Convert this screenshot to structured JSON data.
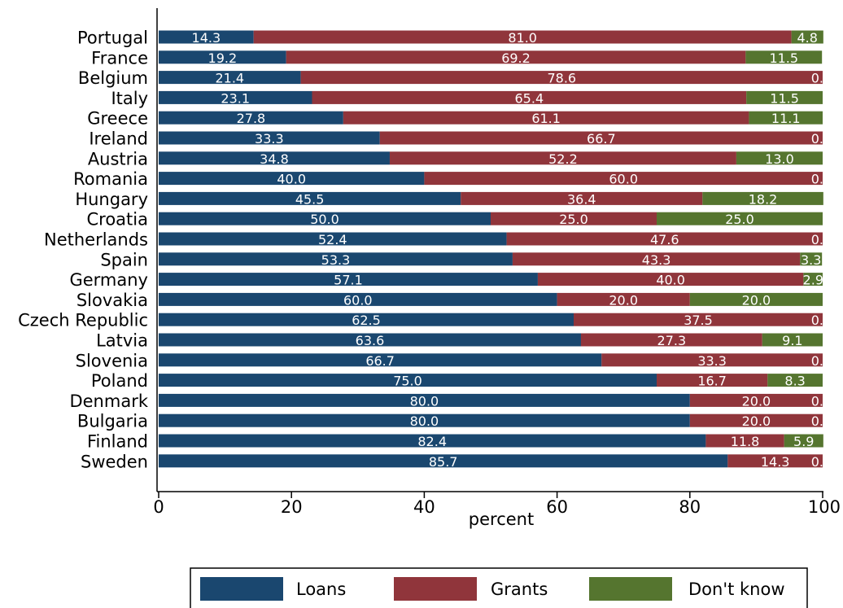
{
  "chart_data": {
    "type": "bar",
    "orientation": "horizontal",
    "stacked": true,
    "xlabel": "percent",
    "xlim": [
      0,
      100
    ],
    "xticks": [
      0,
      20,
      40,
      60,
      80,
      100
    ],
    "grid": false,
    "legend_position": "bottom",
    "categories": [
      "Portugal",
      "France",
      "Belgium",
      "Italy",
      "Greece",
      "Ireland",
      "Austria",
      "Romania",
      "Hungary",
      "Croatia",
      "Netherlands",
      "Spain",
      "Germany",
      "Slovakia",
      "Czech Republic",
      "Latvia",
      "Slovenia",
      "Poland",
      "Denmark",
      "Bulgaria",
      "Finland",
      "Sweden"
    ],
    "series": [
      {
        "name": "Loans",
        "color": "#1a476f",
        "values": [
          14.3,
          19.2,
          21.4,
          23.1,
          27.8,
          33.3,
          34.8,
          40.0,
          45.5,
          50.0,
          52.4,
          53.3,
          57.1,
          60.0,
          62.5,
          63.6,
          66.7,
          75.0,
          80.0,
          80.0,
          82.4,
          85.7
        ]
      },
      {
        "name": "Grants",
        "color": "#90353b",
        "values": [
          81.0,
          69.2,
          78.6,
          65.4,
          61.1,
          66.7,
          52.2,
          60.0,
          36.4,
          25.0,
          47.6,
          43.3,
          40.0,
          20.0,
          37.5,
          27.3,
          33.3,
          16.7,
          20.0,
          20.0,
          11.8,
          14.3
        ]
      },
      {
        "name": "Don't know",
        "color": "#55752f",
        "values": [
          4.8,
          11.5,
          0,
          11.5,
          11.1,
          0,
          13.0,
          0,
          18.2,
          25.0,
          0,
          3.3,
          2.9,
          20.0,
          0,
          9.1,
          0,
          8.3,
          0,
          0,
          5.9,
          0
        ]
      }
    ],
    "data_labels": [
      [
        "14.3",
        "81.0",
        "4.8"
      ],
      [
        "19.2",
        "69.2",
        "11.5"
      ],
      [
        "21.4",
        "78.6",
        "0."
      ],
      [
        "23.1",
        "65.4",
        "11.5"
      ],
      [
        "27.8",
        "61.1",
        "11.1"
      ],
      [
        "33.3",
        "66.7",
        "0."
      ],
      [
        "34.8",
        "52.2",
        "13.0"
      ],
      [
        "40.0",
        "60.0",
        "0."
      ],
      [
        "45.5",
        "36.4",
        "18.2"
      ],
      [
        "50.0",
        "25.0",
        "25.0"
      ],
      [
        "52.4",
        "47.6",
        "0."
      ],
      [
        "53.3",
        "43.3",
        "3.3"
      ],
      [
        "57.1",
        "40.0",
        "2.9"
      ],
      [
        "60.0",
        "20.0",
        "20.0"
      ],
      [
        "62.5",
        "37.5",
        "0."
      ],
      [
        "63.6",
        "27.3",
        "9.1"
      ],
      [
        "66.7",
        "33.3",
        "0."
      ],
      [
        "75.0",
        "16.7",
        "8.3"
      ],
      [
        "80.0",
        "20.0",
        "0."
      ],
      [
        "80.0",
        "20.0",
        "0."
      ],
      [
        "82.4",
        "11.8",
        "5.9"
      ],
      [
        "85.7",
        "14.3",
        "0."
      ]
    ]
  }
}
